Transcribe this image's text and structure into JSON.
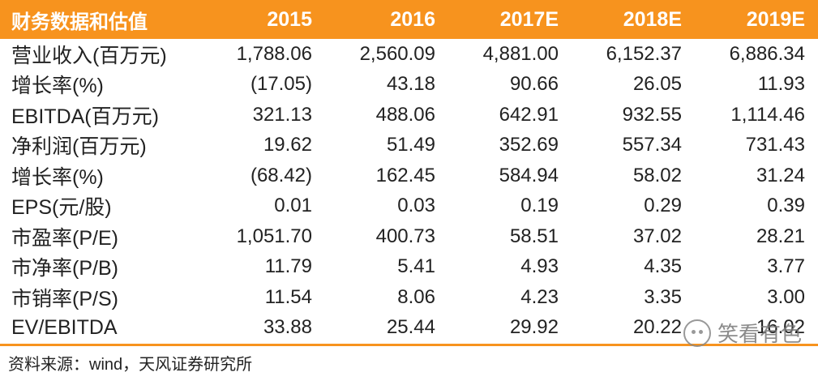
{
  "header": {
    "title": "财务数据和估值",
    "years": [
      "2015",
      "2016",
      "2017E",
      "2018E",
      "2019E"
    ]
  },
  "rows": [
    {
      "label": "营业收入(百万元)",
      "values": [
        "1,788.06",
        "2,560.09",
        "4,881.00",
        "6,152.37",
        "6,886.34"
      ]
    },
    {
      "label": "增长率(%)",
      "values": [
        "(17.05)",
        "43.18",
        "90.66",
        "26.05",
        "11.93"
      ]
    },
    {
      "label": "EBITDA(百万元)",
      "values": [
        "321.13",
        "488.06",
        "642.91",
        "932.55",
        "1,114.46"
      ]
    },
    {
      "label": "净利润(百万元)",
      "values": [
        "19.62",
        "51.49",
        "352.69",
        "557.34",
        "731.43"
      ]
    },
    {
      "label": "增长率(%)",
      "values": [
        "(68.42)",
        "162.45",
        "584.94",
        "58.02",
        "31.24"
      ]
    },
    {
      "label": "EPS(元/股)",
      "values": [
        "0.01",
        "0.03",
        "0.19",
        "0.29",
        "0.39"
      ]
    },
    {
      "label": "市盈率(P/E)",
      "values": [
        "1,051.70",
        "400.73",
        "58.51",
        "37.02",
        "28.21"
      ]
    },
    {
      "label": "市净率(P/B)",
      "values": [
        "11.79",
        "5.41",
        "4.93",
        "4.35",
        "3.77"
      ]
    },
    {
      "label": "市销率(P/S)",
      "values": [
        "11.54",
        "8.06",
        "4.23",
        "3.35",
        "3.00"
      ]
    },
    {
      "label": "EV/EBITDA",
      "values": [
        "33.88",
        "25.44",
        "29.92",
        "20.22",
        "16.02"
      ]
    }
  ],
  "source": "资料来源：wind，天风证券研究所",
  "watermark": "笑看有色",
  "colors": {
    "accent": "#f7931e",
    "header_text": "#ffffff"
  }
}
